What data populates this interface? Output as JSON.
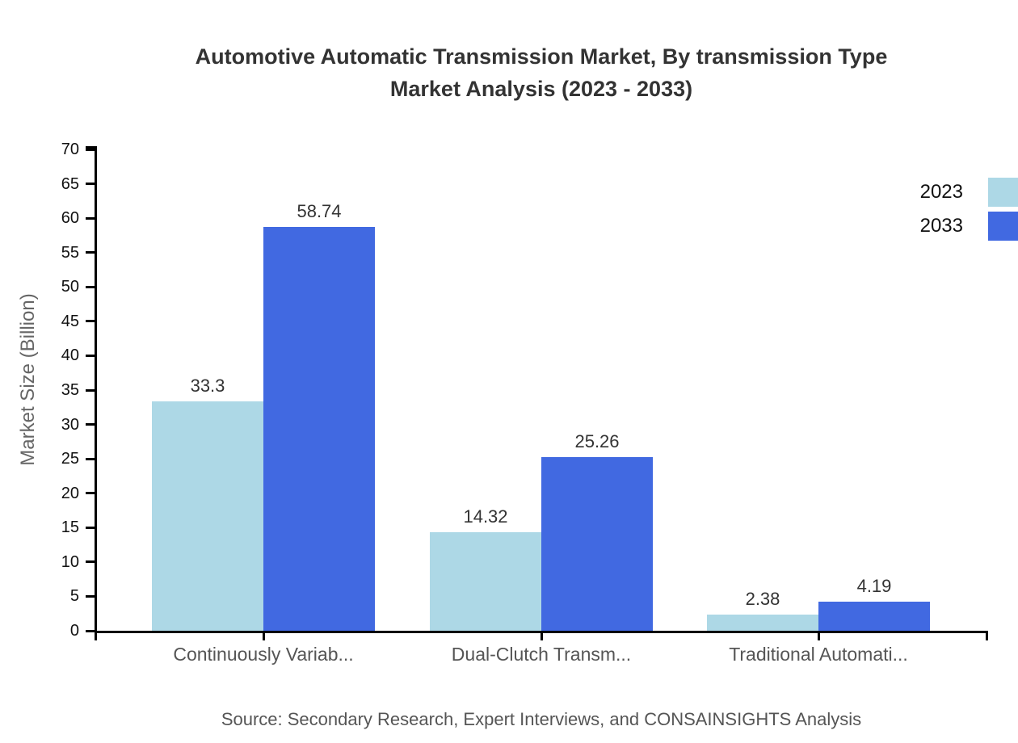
{
  "title": {
    "line1": "Automotive Automatic Transmission Market, By transmission Type",
    "line2": "Market Analysis (2023 - 2033)"
  },
  "source": "Source: Secondary Research, Expert Interviews, and CONSAINSIGHTS Analysis",
  "chart_data": {
    "type": "bar",
    "title": "Automotive Automatic Transmission Market, By transmission Type Market Analysis (2023 - 2033)",
    "categories": [
      "Continuously Variab...",
      "Dual-Clutch Transm...",
      "Traditional Automati..."
    ],
    "series": [
      {
        "name": "2023",
        "color": "#ADD8E6",
        "values": [
          33.3,
          14.32,
          2.38
        ]
      },
      {
        "name": "2033",
        "color": "#4169E1",
        "values": [
          58.74,
          25.26,
          4.19
        ]
      }
    ],
    "xlabel": "",
    "ylabel": "Market Size (Billion)",
    "ylim": [
      0,
      70
    ],
    "ytick_step": 5,
    "grid": false,
    "legend_position": "top-right",
    "value_labels": true
  },
  "colors": {
    "series_2023": "#ADD8E6",
    "series_2033": "#4169E1",
    "axis": "#000000",
    "title_text": "#333333",
    "muted_text": "#555555"
  }
}
